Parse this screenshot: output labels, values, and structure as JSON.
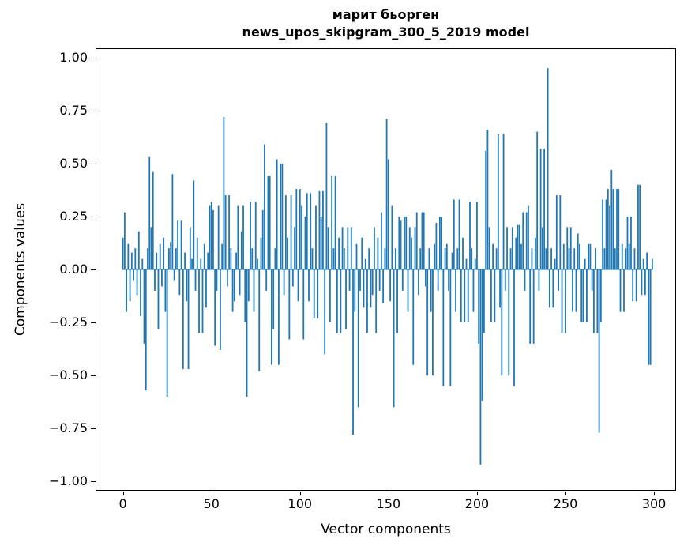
{
  "figure": {
    "title_line1": "марит бьорген",
    "title_line2": "news_upos_skipgram_300_5_2019 model",
    "xlabel": "Vector components",
    "ylabel": "Components values",
    "background": "#ffffff",
    "bar_color": "#1f77b4"
  },
  "chart_data": {
    "type": "bar",
    "title": "марит бьорген\nnews_upos_skipgram_300_5_2019 model",
    "xlabel": "Vector components",
    "ylabel": "Components values",
    "bar_color": "#1f77b4",
    "grid": false,
    "legend": false,
    "xlim": [
      -15,
      312
    ],
    "ylim": [
      -1.04,
      1.04
    ],
    "x_ticks": [
      0,
      50,
      100,
      150,
      200,
      250,
      300
    ],
    "x_tick_labels": [
      "0",
      "50",
      "100",
      "150",
      "200",
      "250",
      "300"
    ],
    "y_ticks": [
      1.0,
      0.75,
      0.5,
      0.25,
      0.0,
      -0.25,
      -0.5,
      -0.75,
      -1.0
    ],
    "y_tick_labels": [
      "1.00",
      "0.75",
      "0.50",
      "0.25",
      "0.00",
      "−0.25",
      "−0.50",
      "−0.75",
      "−1.00"
    ],
    "x_start": 0,
    "values": [
      0.15,
      0.27,
      -0.2,
      0.12,
      -0.15,
      0.08,
      -0.05,
      0.1,
      -0.12,
      0.18,
      -0.22,
      0.05,
      -0.35,
      -0.57,
      0.1,
      0.53,
      0.2,
      0.46,
      -0.1,
      0.08,
      -0.28,
      0.12,
      -0.08,
      0.15,
      -0.2,
      -0.6,
      0.1,
      0.13,
      0.45,
      -0.05,
      0.1,
      0.23,
      -0.12,
      0.23,
      -0.47,
      0.08,
      -0.15,
      -0.47,
      0.2,
      0.05,
      0.42,
      -0.1,
      0.15,
      -0.3,
      0.05,
      -0.3,
      0.12,
      -0.18,
      0.08,
      0.3,
      0.32,
      0.28,
      -0.36,
      -0.1,
      0.3,
      -0.38,
      0.12,
      0.72,
      0.35,
      -0.08,
      0.35,
      0.1,
      -0.2,
      -0.15,
      0.08,
      0.3,
      -0.12,
      0.18,
      0.3,
      -0.25,
      -0.6,
      -0.15,
      0.32,
      0.1,
      -0.2,
      0.32,
      0.05,
      -0.48,
      0.15,
      0.28,
      0.59,
      -0.1,
      0.44,
      0.44,
      -0.45,
      -0.28,
      0.1,
      0.52,
      -0.45,
      0.5,
      0.5,
      -0.12,
      0.35,
      0.15,
      -0.33,
      0.35,
      -0.08,
      0.2,
      0.38,
      -0.15,
      0.38,
      0.3,
      -0.33,
      0.25,
      0.36,
      -0.15,
      0.36,
      0.1,
      -0.23,
      0.3,
      -0.23,
      0.37,
      0.25,
      0.37,
      -0.4,
      0.69,
      0.2,
      -0.25,
      0.44,
      0.1,
      0.44,
      -0.3,
      0.15,
      -0.3,
      0.2,
      0.1,
      -0.28,
      0.2,
      -0.1,
      0.2,
      -0.78,
      -0.2,
      0.12,
      -0.65,
      -0.1,
      0.15,
      -0.18,
      0.05,
      -0.3,
      0.1,
      -0.18,
      -0.12,
      0.2,
      -0.3,
      0.15,
      -0.1,
      0.27,
      -0.16,
      0.1,
      0.71,
      0.52,
      -0.15,
      0.3,
      -0.65,
      0.1,
      -0.3,
      0.25,
      0.23,
      -0.1,
      0.25,
      0.25,
      -0.2,
      0.2,
      0.15,
      -0.45,
      0.2,
      0.27,
      -0.12,
      0.1,
      0.27,
      0.27,
      -0.08,
      -0.5,
      0.1,
      -0.2,
      -0.5,
      0.12,
      0.22,
      -0.1,
      0.25,
      0.25,
      -0.55,
      0.1,
      0.12,
      -0.1,
      -0.55,
      0.08,
      0.33,
      -0.2,
      0.1,
      0.33,
      -0.25,
      0.15,
      -0.25,
      0.05,
      -0.25,
      0.32,
      0.1,
      -0.2,
      0.05,
      0.32,
      -0.35,
      -0.92,
      -0.62,
      -0.3,
      0.56,
      0.66,
      0.2,
      -0.25,
      0.12,
      -0.25,
      0.1,
      0.64,
      -0.18,
      -0.5,
      0.64,
      -0.1,
      0.2,
      -0.5,
      0.1,
      0.2,
      -0.55,
      0.15,
      0.21,
      0.21,
      0.12,
      0.27,
      -0.1,
      0.27,
      0.3,
      -0.35,
      0.1,
      -0.35,
      0.15,
      0.65,
      -0.1,
      0.57,
      0.2,
      0.57,
      0.1,
      0.95,
      -0.18,
      0.1,
      -0.18,
      0.05,
      0.35,
      -0.1,
      0.35,
      -0.3,
      0.12,
      -0.3,
      0.2,
      0.1,
      0.2,
      -0.2,
      0.1,
      -0.2,
      0.17,
      0.12,
      -0.25,
      -0.25,
      0.05,
      -0.25,
      0.12,
      0.12,
      -0.1,
      -0.3,
      0.1,
      -0.3,
      -0.77,
      -0.25,
      0.33,
      0.1,
      0.33,
      0.38,
      0.3,
      0.47,
      0.38,
      0.1,
      0.38,
      0.38,
      -0.2,
      0.12,
      -0.2,
      0.1,
      0.25,
      0.12,
      0.25,
      -0.15,
      0.1,
      -0.15,
      0.4,
      0.4,
      -0.12,
      0.05,
      -0.12,
      0.08,
      -0.45,
      -0.45,
      0.05
    ]
  }
}
